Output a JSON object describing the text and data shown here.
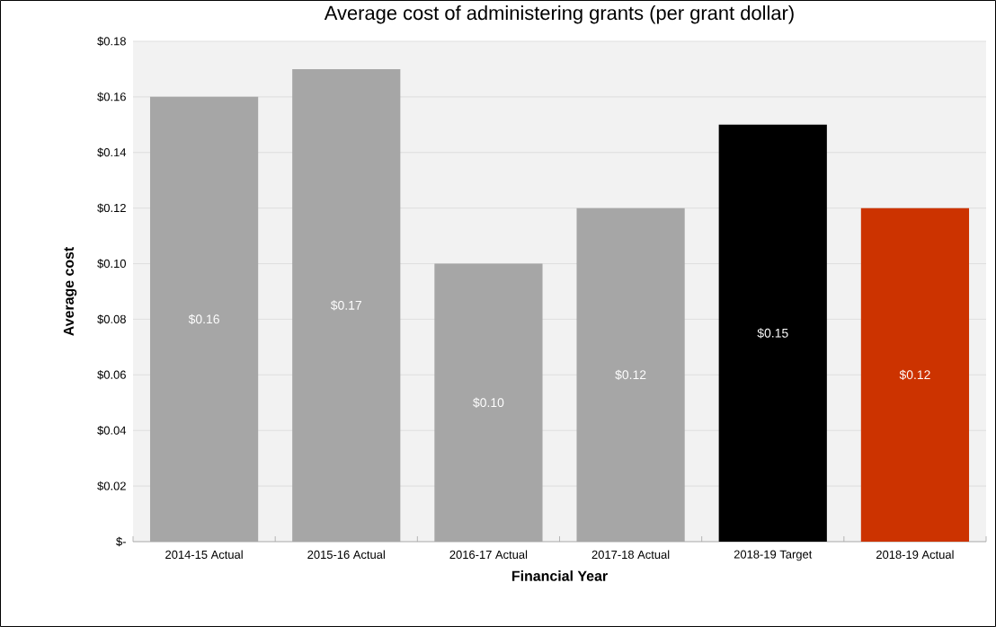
{
  "chart_data": {
    "type": "bar",
    "title": "Average cost of administering grants (per grant dollar)",
    "xlabel": "Financial Year",
    "ylabel": "Average cost",
    "categories": [
      "2014-15 Actual",
      "2015-16 Actual",
      "2016-17 Actual",
      "2017-18 Actual",
      "2018-19 Target",
      "2018-19 Actual"
    ],
    "values": [
      0.16,
      0.17,
      0.1,
      0.12,
      0.15,
      0.12
    ],
    "colors": [
      "#a6a6a6",
      "#a6a6a6",
      "#a6a6a6",
      "#a6a6a6",
      "#000000",
      "#cc3300"
    ],
    "value_labels": [
      "$0.16",
      "$0.17",
      "$0.10",
      "$0.12",
      "$0.15",
      "$0.12"
    ],
    "ylim": [
      0,
      0.18
    ],
    "yticks": [
      {
        "value": 0,
        "label": "$-"
      },
      {
        "value": 0.02,
        "label": "$0.02"
      },
      {
        "value": 0.04,
        "label": "$0.04"
      },
      {
        "value": 0.06,
        "label": "$0.06"
      },
      {
        "value": 0.08,
        "label": "$0.08"
      },
      {
        "value": 0.1,
        "label": "$0.10"
      },
      {
        "value": 0.12,
        "label": "$0.12"
      },
      {
        "value": 0.14,
        "label": "$0.14"
      },
      {
        "value": 0.16,
        "label": "$0.16"
      },
      {
        "value": 0.18,
        "label": "$0.18"
      }
    ],
    "grid": "y"
  }
}
